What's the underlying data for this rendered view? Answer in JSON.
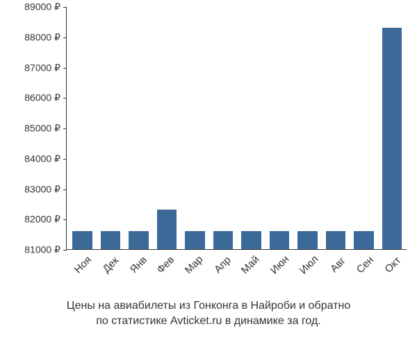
{
  "chart": {
    "type": "bar",
    "categories": [
      "Ноя",
      "Дек",
      "Янв",
      "Фев",
      "Мар",
      "Апр",
      "Май",
      "Июн",
      "Июл",
      "Авг",
      "Сен",
      "Окт"
    ],
    "values": [
      81600,
      81600,
      81600,
      82300,
      81600,
      81600,
      81600,
      81600,
      81600,
      81600,
      81600,
      88300
    ],
    "bar_color": "#3b6a99",
    "ylim_min": 81000,
    "ylim_max": 89000,
    "ytick_step": 1000,
    "y_suffix": " ₽",
    "background_color": "#ffffff",
    "axis_color": "#333333",
    "label_fontsize": 14,
    "caption_line1": "Цены на авиабилеты из Гонконга в Найроби и обратно",
    "caption_line2": "по статистике Avticket.ru в динамике за год.",
    "caption_fontsize": 16
  }
}
